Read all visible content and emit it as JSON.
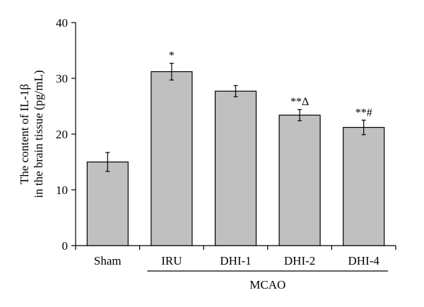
{
  "chart_data": {
    "type": "bar",
    "categories": [
      "Sham",
      "IRU",
      "DHI-1",
      "DHI-2",
      "DHI-4"
    ],
    "values": [
      15.0,
      31.2,
      27.7,
      23.4,
      21.2
    ],
    "errors": [
      1.7,
      1.5,
      1.0,
      1.0,
      1.3
    ],
    "annotations": [
      "",
      "*",
      "",
      "**Δ",
      "**#"
    ],
    "group_label": "MCAO",
    "group_span": [
      "IRU",
      "DHI-4"
    ],
    "ylabel_lines": [
      "The content of IL-1β",
      "in the brain tissue (pg/mL)"
    ],
    "ylim": [
      0,
      40
    ],
    "yticks": [
      0,
      10,
      20,
      30,
      40
    ],
    "grid": false,
    "colors": {
      "bar_fill": "#c0c0c0",
      "bar_stroke": "#000000"
    }
  }
}
